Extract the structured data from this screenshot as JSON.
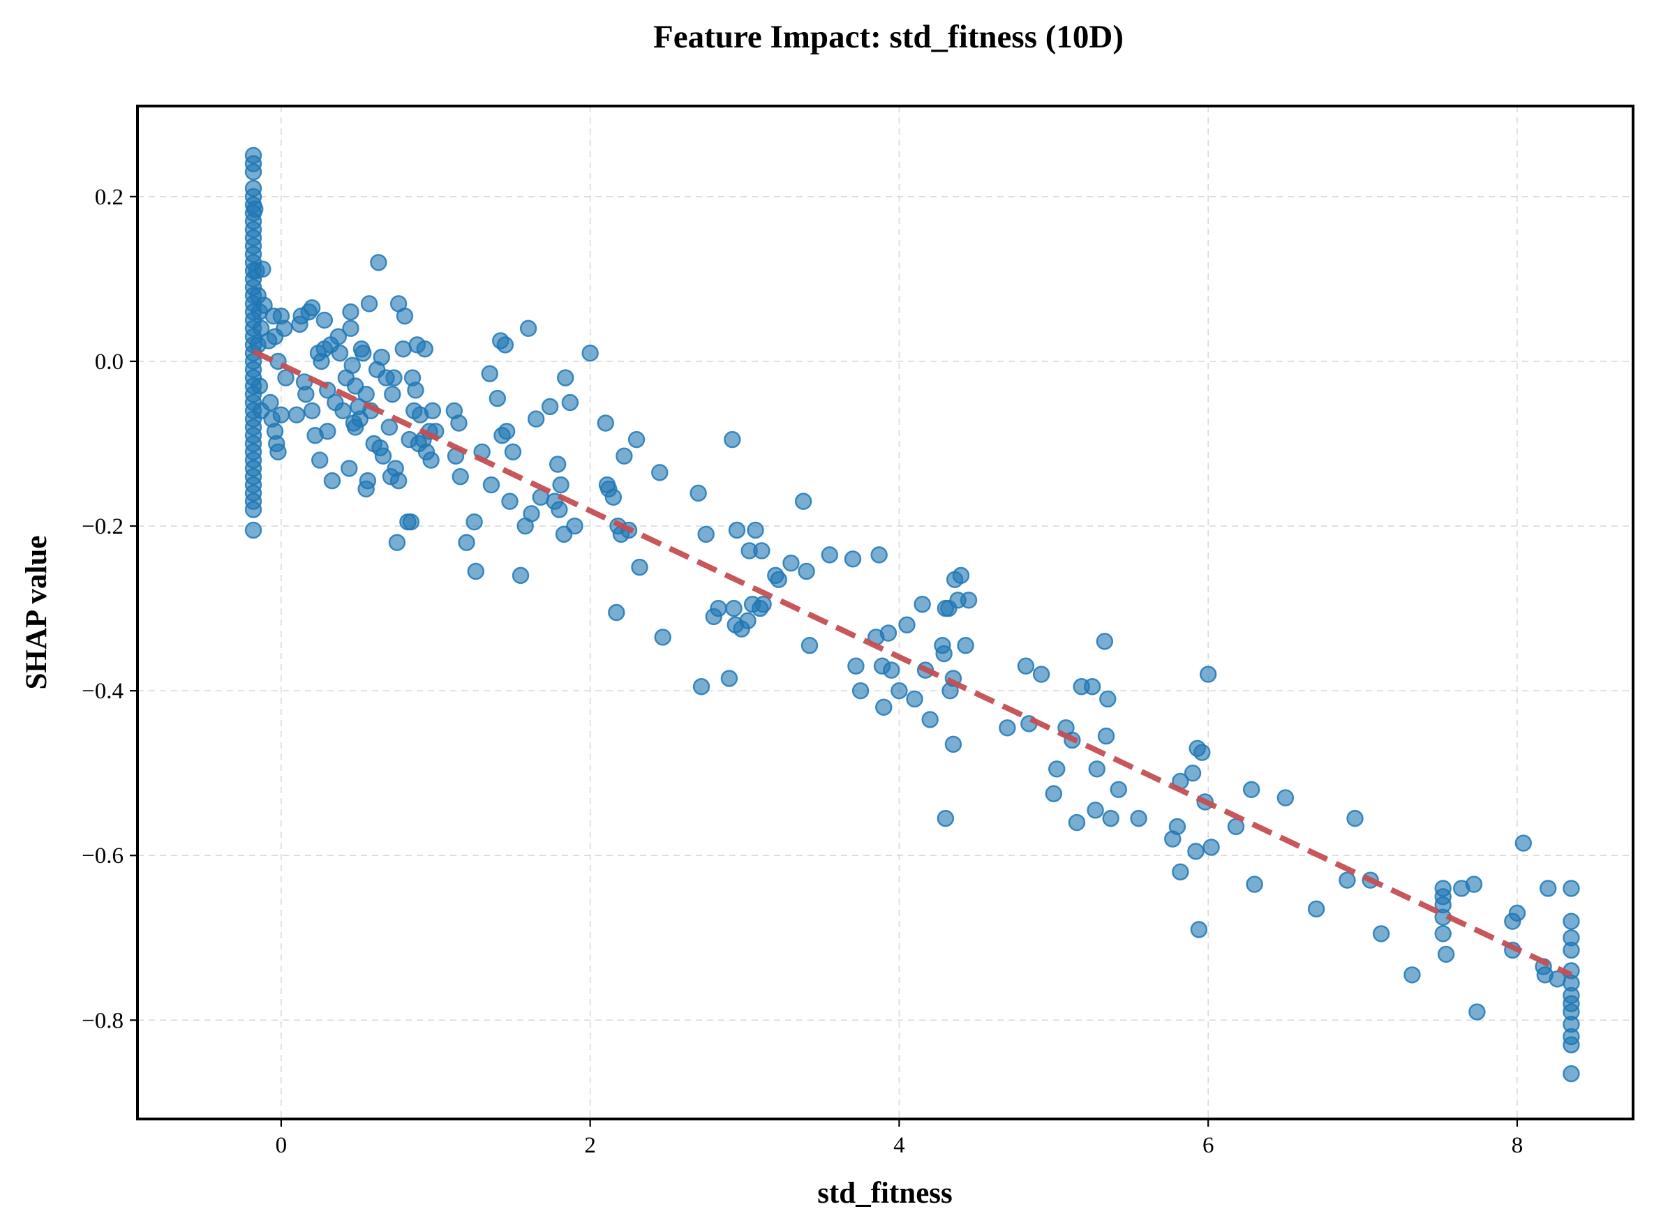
{
  "chart_data": {
    "type": "scatter",
    "title": "Feature Impact: std_fitness (10D)",
    "xlabel": "std_fitness",
    "ylabel": "SHAP value",
    "xlim": [
      -0.93,
      8.75
    ],
    "ylim": [
      -0.92,
      0.31
    ],
    "xticks": [
      0,
      2,
      4,
      6,
      8
    ],
    "yticks": [
      0.2,
      0.0,
      -0.2,
      -0.4,
      -0.6,
      -0.8
    ],
    "xtick_labels": [
      "0",
      "2",
      "4",
      "6",
      "8"
    ],
    "ytick_labels": [
      "0.2",
      "0.0",
      "−0.2",
      "−0.4",
      "−0.6",
      "−0.8"
    ],
    "grid": true,
    "point_color": "#1f77b4",
    "trend_color": "#c44e52",
    "trend_line": {
      "style": "dashed",
      "x": [
        -0.18,
        8.35
      ],
      "y": [
        0.012,
        -0.745
      ]
    },
    "points": [
      [
        -0.18,
        0.25
      ],
      [
        -0.18,
        0.24
      ],
      [
        -0.18,
        0.23
      ],
      [
        -0.18,
        0.21
      ],
      [
        -0.18,
        0.2
      ],
      [
        -0.18,
        0.19
      ],
      [
        -0.18,
        0.18
      ],
      [
        -0.18,
        0.17
      ],
      [
        -0.18,
        0.16
      ],
      [
        -0.18,
        0.15
      ],
      [
        -0.18,
        0.14
      ],
      [
        -0.18,
        0.13
      ],
      [
        -0.18,
        0.12
      ],
      [
        -0.18,
        0.11
      ],
      [
        -0.18,
        0.1
      ],
      [
        -0.18,
        0.09
      ],
      [
        -0.18,
        0.08
      ],
      [
        -0.18,
        0.07
      ],
      [
        -0.18,
        0.06
      ],
      [
        -0.18,
        0.05
      ],
      [
        -0.18,
        0.04
      ],
      [
        -0.18,
        0.03
      ],
      [
        -0.18,
        0.02
      ],
      [
        -0.18,
        0.01
      ],
      [
        -0.18,
        0.0
      ],
      [
        -0.18,
        -0.01
      ],
      [
        -0.18,
        -0.02
      ],
      [
        -0.18,
        -0.03
      ],
      [
        -0.18,
        -0.04
      ],
      [
        -0.18,
        -0.05
      ],
      [
        -0.18,
        -0.06
      ],
      [
        -0.18,
        -0.07
      ],
      [
        -0.18,
        -0.08
      ],
      [
        -0.18,
        -0.09
      ],
      [
        -0.18,
        -0.1
      ],
      [
        -0.18,
        -0.11
      ],
      [
        -0.18,
        -0.12
      ],
      [
        -0.18,
        -0.13
      ],
      [
        -0.18,
        -0.14
      ],
      [
        -0.18,
        -0.15
      ],
      [
        -0.18,
        -0.16
      ],
      [
        -0.18,
        -0.17
      ],
      [
        -0.18,
        -0.18
      ],
      [
        -0.18,
        -0.205
      ],
      [
        -0.17,
        0.185
      ],
      [
        -0.16,
        0.11
      ],
      [
        -0.15,
        0.08
      ],
      [
        -0.14,
        0.06
      ],
      [
        -0.13,
        0.04
      ],
      [
        -0.15,
        0.02
      ],
      [
        -0.14,
        -0.03
      ],
      [
        -0.13,
        -0.06
      ],
      [
        -0.12,
        0.112
      ],
      [
        -0.11,
        0.068
      ],
      [
        -0.08,
        0.025
      ],
      [
        -0.07,
        -0.05
      ],
      [
        -0.06,
        -0.07
      ],
      [
        -0.05,
        0.055
      ],
      [
        -0.04,
        0.03
      ],
      [
        -0.04,
        -0.085
      ],
      [
        -0.03,
        -0.1
      ],
      [
        -0.02,
        -0.11
      ],
      [
        -0.02,
        0.0
      ],
      [
        0.0,
        -0.065
      ],
      [
        0.0,
        0.055
      ],
      [
        0.02,
        0.04
      ],
      [
        0.03,
        -0.02
      ],
      [
        0.1,
        -0.065
      ],
      [
        0.12,
        0.045
      ],
      [
        0.13,
        0.055
      ],
      [
        0.15,
        -0.025
      ],
      [
        0.16,
        -0.04
      ],
      [
        0.18,
        0.06
      ],
      [
        0.2,
        0.065
      ],
      [
        0.2,
        -0.06
      ],
      [
        0.22,
        -0.09
      ],
      [
        0.24,
        0.01
      ],
      [
        0.25,
        -0.12
      ],
      [
        0.26,
        0.0
      ],
      [
        0.28,
        0.015
      ],
      [
        0.28,
        0.05
      ],
      [
        0.3,
        -0.035
      ],
      [
        0.3,
        -0.085
      ],
      [
        0.32,
        0.02
      ],
      [
        0.33,
        -0.145
      ],
      [
        0.35,
        -0.05
      ],
      [
        0.37,
        0.03
      ],
      [
        0.38,
        0.01
      ],
      [
        0.4,
        -0.06
      ],
      [
        0.42,
        -0.02
      ],
      [
        0.44,
        -0.13
      ],
      [
        0.45,
        0.06
      ],
      [
        0.45,
        0.04
      ],
      [
        0.46,
        -0.005
      ],
      [
        0.47,
        -0.075
      ],
      [
        0.48,
        -0.08
      ],
      [
        0.48,
        -0.03
      ],
      [
        0.5,
        -0.055
      ],
      [
        0.51,
        -0.07
      ],
      [
        0.52,
        0.015
      ],
      [
        0.53,
        0.01
      ],
      [
        0.55,
        -0.04
      ],
      [
        0.55,
        -0.155
      ],
      [
        0.56,
        -0.145
      ],
      [
        0.57,
        0.07
      ],
      [
        0.58,
        -0.06
      ],
      [
        0.6,
        -0.1
      ],
      [
        0.62,
        -0.01
      ],
      [
        0.63,
        0.12
      ],
      [
        0.64,
        -0.105
      ],
      [
        0.65,
        0.005
      ],
      [
        0.66,
        -0.115
      ],
      [
        0.68,
        -0.02
      ],
      [
        0.7,
        -0.08
      ],
      [
        0.71,
        -0.14
      ],
      [
        0.72,
        -0.04
      ],
      [
        0.73,
        -0.02
      ],
      [
        0.74,
        -0.13
      ],
      [
        0.75,
        -0.22
      ],
      [
        0.76,
        0.07
      ],
      [
        0.76,
        -0.145
      ],
      [
        0.79,
        0.015
      ],
      [
        0.8,
        0.055
      ],
      [
        0.82,
        -0.195
      ],
      [
        0.83,
        -0.095
      ],
      [
        0.84,
        -0.195
      ],
      [
        0.85,
        -0.02
      ],
      [
        0.86,
        -0.06
      ],
      [
        0.87,
        -0.035
      ],
      [
        0.88,
        0.02
      ],
      [
        0.89,
        -0.1
      ],
      [
        0.9,
        -0.065
      ],
      [
        0.92,
        -0.095
      ],
      [
        0.93,
        0.015
      ],
      [
        0.94,
        -0.11
      ],
      [
        0.96,
        -0.085
      ],
      [
        0.97,
        -0.12
      ],
      [
        0.98,
        -0.06
      ],
      [
        1.0,
        -0.085
      ],
      [
        1.12,
        -0.06
      ],
      [
        1.13,
        -0.115
      ],
      [
        1.15,
        -0.075
      ],
      [
        1.16,
        -0.14
      ],
      [
        1.2,
        -0.22
      ],
      [
        1.25,
        -0.195
      ],
      [
        1.26,
        -0.255
      ],
      [
        1.3,
        -0.11
      ],
      [
        1.35,
        -0.015
      ],
      [
        1.36,
        -0.15
      ],
      [
        1.4,
        -0.045
      ],
      [
        1.42,
        0.025
      ],
      [
        1.43,
        -0.09
      ],
      [
        1.45,
        0.02
      ],
      [
        1.46,
        -0.085
      ],
      [
        1.48,
        -0.17
      ],
      [
        1.5,
        -0.11
      ],
      [
        1.55,
        -0.26
      ],
      [
        1.58,
        -0.2
      ],
      [
        1.6,
        0.04
      ],
      [
        1.62,
        -0.185
      ],
      [
        1.65,
        -0.07
      ],
      [
        1.68,
        -0.165
      ],
      [
        1.74,
        -0.055
      ],
      [
        1.77,
        -0.17
      ],
      [
        1.79,
        -0.125
      ],
      [
        1.8,
        -0.18
      ],
      [
        1.81,
        -0.15
      ],
      [
        1.83,
        -0.21
      ],
      [
        1.84,
        -0.02
      ],
      [
        1.87,
        -0.05
      ],
      [
        1.9,
        -0.2
      ],
      [
        2.0,
        0.01
      ],
      [
        2.1,
        -0.075
      ],
      [
        2.11,
        -0.15
      ],
      [
        2.12,
        -0.155
      ],
      [
        2.15,
        -0.165
      ],
      [
        2.17,
        -0.305
      ],
      [
        2.18,
        -0.2
      ],
      [
        2.2,
        -0.21
      ],
      [
        2.22,
        -0.115
      ],
      [
        2.25,
        -0.205
      ],
      [
        2.3,
        -0.095
      ],
      [
        2.32,
        -0.25
      ],
      [
        2.45,
        -0.135
      ],
      [
        2.47,
        -0.335
      ],
      [
        2.7,
        -0.16
      ],
      [
        2.72,
        -0.395
      ],
      [
        2.75,
        -0.21
      ],
      [
        2.8,
        -0.31
      ],
      [
        2.83,
        -0.3
      ],
      [
        2.9,
        -0.385
      ],
      [
        2.92,
        -0.095
      ],
      [
        2.93,
        -0.3
      ],
      [
        2.94,
        -0.32
      ],
      [
        2.95,
        -0.205
      ],
      [
        2.98,
        -0.325
      ],
      [
        3.02,
        -0.315
      ],
      [
        3.03,
        -0.23
      ],
      [
        3.05,
        -0.295
      ],
      [
        3.07,
        -0.205
      ],
      [
        3.1,
        -0.3
      ],
      [
        3.11,
        -0.23
      ],
      [
        3.12,
        -0.295
      ],
      [
        3.2,
        -0.26
      ],
      [
        3.22,
        -0.265
      ],
      [
        3.3,
        -0.245
      ],
      [
        3.38,
        -0.17
      ],
      [
        3.4,
        -0.255
      ],
      [
        3.42,
        -0.345
      ],
      [
        3.55,
        -0.235
      ],
      [
        3.7,
        -0.24
      ],
      [
        3.72,
        -0.37
      ],
      [
        3.75,
        -0.4
      ],
      [
        3.85,
        -0.335
      ],
      [
        3.87,
        -0.235
      ],
      [
        3.89,
        -0.37
      ],
      [
        3.9,
        -0.42
      ],
      [
        3.93,
        -0.33
      ],
      [
        3.95,
        -0.375
      ],
      [
        4.0,
        -0.4
      ],
      [
        4.05,
        -0.32
      ],
      [
        4.1,
        -0.41
      ],
      [
        4.15,
        -0.295
      ],
      [
        4.17,
        -0.375
      ],
      [
        4.2,
        -0.435
      ],
      [
        4.28,
        -0.345
      ],
      [
        4.29,
        -0.355
      ],
      [
        4.3,
        -0.3
      ],
      [
        4.3,
        -0.555
      ],
      [
        4.32,
        -0.3
      ],
      [
        4.33,
        -0.4
      ],
      [
        4.35,
        -0.385
      ],
      [
        4.35,
        -0.465
      ],
      [
        4.36,
        -0.265
      ],
      [
        4.38,
        -0.29
      ],
      [
        4.4,
        -0.26
      ],
      [
        4.43,
        -0.345
      ],
      [
        4.45,
        -0.29
      ],
      [
        4.7,
        -0.445
      ],
      [
        4.82,
        -0.37
      ],
      [
        4.84,
        -0.44
      ],
      [
        4.92,
        -0.38
      ],
      [
        5.0,
        -0.525
      ],
      [
        5.02,
        -0.495
      ],
      [
        5.08,
        -0.445
      ],
      [
        5.12,
        -0.46
      ],
      [
        5.15,
        -0.56
      ],
      [
        5.18,
        -0.395
      ],
      [
        5.25,
        -0.395
      ],
      [
        5.27,
        -0.545
      ],
      [
        5.28,
        -0.495
      ],
      [
        5.33,
        -0.34
      ],
      [
        5.34,
        -0.455
      ],
      [
        5.35,
        -0.41
      ],
      [
        5.37,
        -0.555
      ],
      [
        5.42,
        -0.52
      ],
      [
        5.55,
        -0.555
      ],
      [
        5.77,
        -0.58
      ],
      [
        5.8,
        -0.565
      ],
      [
        5.82,
        -0.62
      ],
      [
        5.82,
        -0.51
      ],
      [
        5.9,
        -0.5
      ],
      [
        5.92,
        -0.595
      ],
      [
        5.93,
        -0.47
      ],
      [
        5.94,
        -0.69
      ],
      [
        5.96,
        -0.475
      ],
      [
        5.98,
        -0.535
      ],
      [
        6.0,
        -0.38
      ],
      [
        6.02,
        -0.59
      ],
      [
        6.18,
        -0.565
      ],
      [
        6.28,
        -0.52
      ],
      [
        6.3,
        -0.635
      ],
      [
        6.5,
        -0.53
      ],
      [
        6.7,
        -0.665
      ],
      [
        6.9,
        -0.63
      ],
      [
        6.95,
        -0.555
      ],
      [
        7.05,
        -0.63
      ],
      [
        7.12,
        -0.695
      ],
      [
        7.32,
        -0.745
      ],
      [
        7.52,
        -0.64
      ],
      [
        7.52,
        -0.65
      ],
      [
        7.52,
        -0.66
      ],
      [
        7.52,
        -0.675
      ],
      [
        7.52,
        -0.695
      ],
      [
        7.54,
        -0.72
      ],
      [
        7.64,
        -0.64
      ],
      [
        7.72,
        -0.635
      ],
      [
        7.74,
        -0.79
      ],
      [
        7.97,
        -0.68
      ],
      [
        7.97,
        -0.715
      ],
      [
        8.0,
        -0.67
      ],
      [
        8.04,
        -0.585
      ],
      [
        8.17,
        -0.735
      ],
      [
        8.18,
        -0.745
      ],
      [
        8.2,
        -0.64
      ],
      [
        8.26,
        -0.75
      ],
      [
        8.35,
        -0.64
      ],
      [
        8.35,
        -0.68
      ],
      [
        8.35,
        -0.7
      ],
      [
        8.35,
        -0.715
      ],
      [
        8.35,
        -0.74
      ],
      [
        8.35,
        -0.755
      ],
      [
        8.35,
        -0.77
      ],
      [
        8.35,
        -0.78
      ],
      [
        8.35,
        -0.79
      ],
      [
        8.35,
        -0.805
      ],
      [
        8.35,
        -0.82
      ],
      [
        8.35,
        -0.83
      ],
      [
        8.35,
        -0.865
      ]
    ]
  }
}
